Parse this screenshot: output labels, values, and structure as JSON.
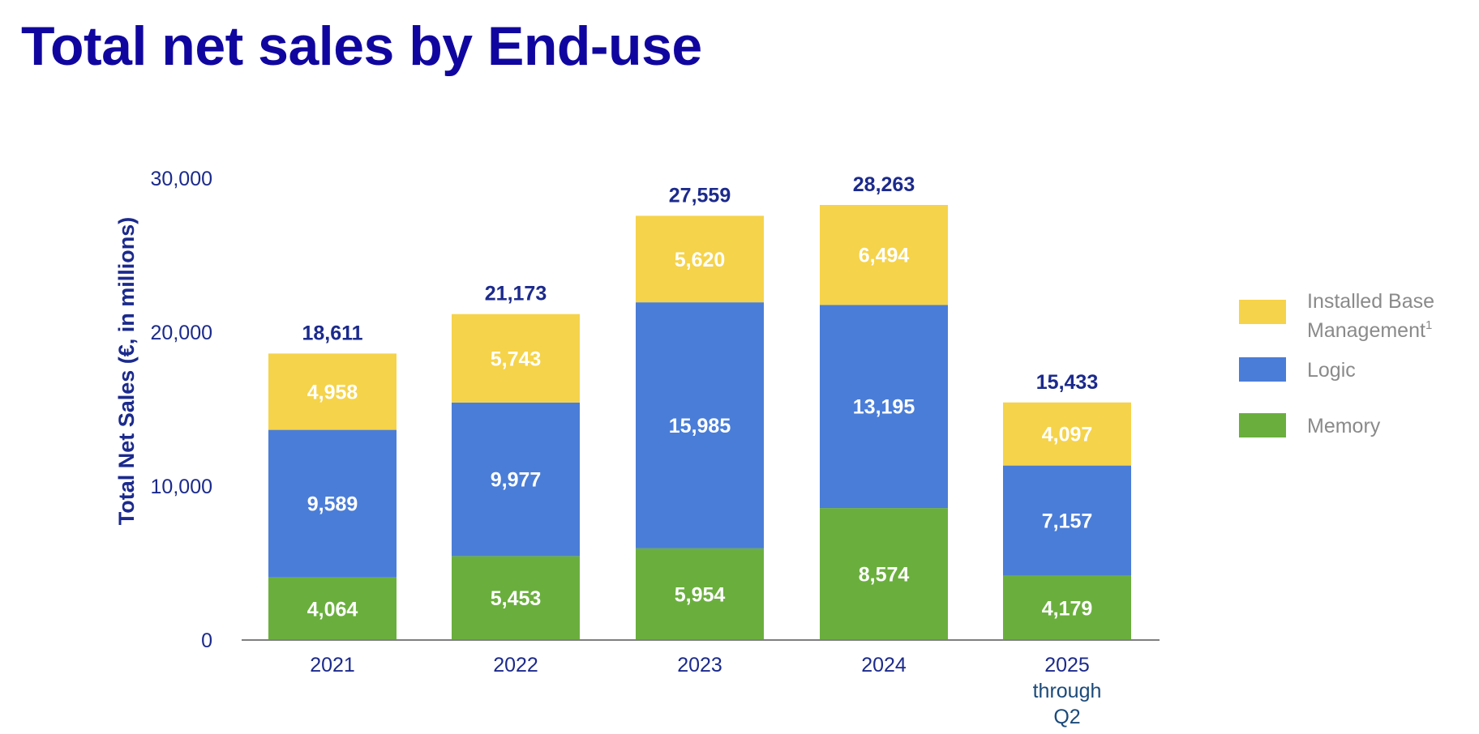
{
  "page": {
    "title": "Total net sales by End-use"
  },
  "chart_data": {
    "type": "bar",
    "stacked": true,
    "title": "Total net sales by End-use",
    "ylabel": "Total Net Sales (€, in millions)",
    "xlabel": "",
    "ylim": [
      0,
      30000
    ],
    "yticks": [
      0,
      10000,
      20000,
      30000
    ],
    "ytick_labels": [
      "0",
      "10,000",
      "20,000",
      "30,000"
    ],
    "categories": [
      {
        "label": "2021",
        "sublines": []
      },
      {
        "label": "2022",
        "sublines": []
      },
      {
        "label": "2023",
        "sublines": []
      },
      {
        "label": "2024",
        "sublines": []
      },
      {
        "label": "2025",
        "sublines": [
          "through",
          "Q2"
        ]
      }
    ],
    "series": [
      {
        "name": "Memory",
        "color": "#6aaf3d",
        "values": [
          4064,
          5453,
          5954,
          8574,
          4179
        ],
        "value_labels": [
          "4,064",
          "5,453",
          "5,954",
          "8,574",
          "4,179"
        ]
      },
      {
        "name": "Logic",
        "color": "#4a7dd7",
        "values": [
          9589,
          9977,
          15985,
          13195,
          7157
        ],
        "value_labels": [
          "9,589",
          "9,977",
          "15,985",
          "13,195",
          "7,157"
        ]
      },
      {
        "name": "Installed Base Management",
        "color": "#f5d34a",
        "values": [
          4958,
          5743,
          5620,
          6494,
          4097
        ],
        "value_labels": [
          "4,958",
          "5,743",
          "5,620",
          "6,494",
          "4,097"
        ]
      }
    ],
    "totals": [
      18611,
      21173,
      27559,
      28263,
      15433
    ],
    "total_labels": [
      "18,611",
      "21,173",
      "27,559",
      "28,263",
      "15,433"
    ],
    "legend": {
      "position": "right",
      "items": [
        {
          "series": "Installed Base Management",
          "lines": [
            "Installed Base",
            "Management"
          ],
          "superscript": "1",
          "color": "#f5d34a"
        },
        {
          "series": "Logic",
          "lines": [
            "Logic"
          ],
          "superscript": "",
          "color": "#4a7dd7"
        },
        {
          "series": "Memory",
          "lines": [
            "Memory"
          ],
          "superscript": "",
          "color": "#6aaf3d"
        }
      ]
    },
    "colors": {
      "axis": "#7f7f7f",
      "text_primary": "#1b2a8c",
      "segment_text": "#ffffff",
      "legend_text": "#8a8a8a"
    }
  }
}
